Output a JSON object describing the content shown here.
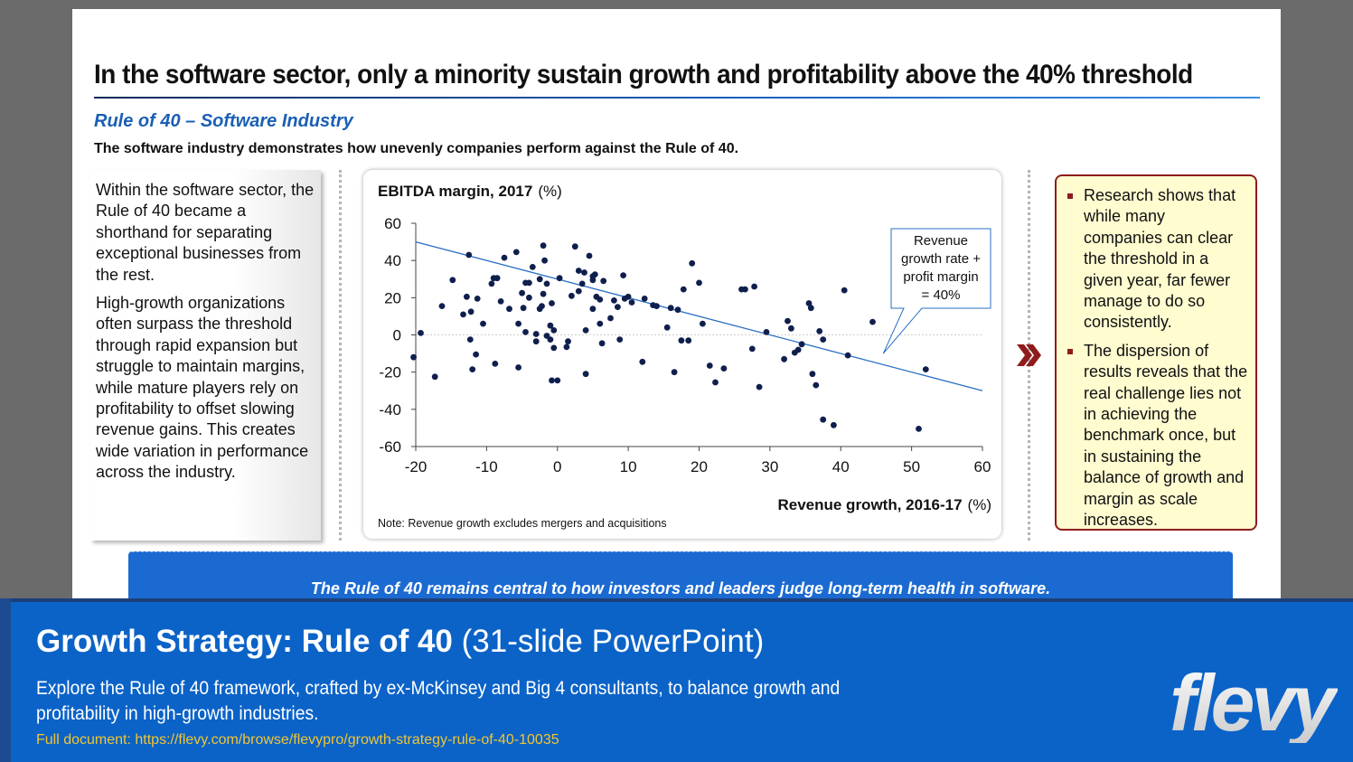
{
  "slide": {
    "title": "In the software sector, only a minority sustain growth and profitability above the 40% threshold",
    "subtitle": "Rule of 40 – Software Industry",
    "lead": "The software industry demonstrates how unevenly companies perform against the Rule of 40.",
    "left_paragraphs": [
      "Within the software sector, the Rule of 40 became a shorthand for separating exceptional businesses from the rest.",
      "High-growth organizations often surpass the threshold through rapid expansion but struggle to maintain margins, while mature players rely on profitability to offset slowing revenue gains. This creates wide variation in performance across the industry."
    ],
    "right_bullets": [
      "Research shows that while many companies can clear the threshold in a given year, far fewer manage to do so consistently.",
      "The dispersion of results reveals that the real challenge lies not in achieving the benchmark once, but in sustaining the balance of growth and margin as scale increases."
    ],
    "banner": "The Rule of 40 remains central to how investors and leaders judge long-term health in software."
  },
  "chart_data": {
    "type": "scatter",
    "title": "EBITDA margin, 2017",
    "title_unit": "(%)",
    "xlabel": "Revenue growth, 2016-17",
    "xlabel_unit": "(%)",
    "note": "Note: Revenue growth excludes mergers and acquisitions",
    "xlim": [
      -20,
      60
    ],
    "ylim": [
      -60,
      60
    ],
    "x_ticks": [
      -20,
      -10,
      0,
      10,
      20,
      30,
      40,
      50,
      60
    ],
    "y_ticks": [
      60,
      40,
      20,
      0,
      -20,
      -40,
      -60
    ],
    "reference_line": {
      "label_lines": [
        "Revenue",
        "growth rate +",
        "profit margin",
        "= 40%"
      ],
      "from": [
        -20,
        50
      ],
      "to": [
        60,
        -30
      ]
    },
    "points": [
      [
        -20.3,
        -12
      ],
      [
        -19.3,
        1
      ],
      [
        -17.3,
        -22.5
      ],
      [
        -16.3,
        15.5
      ],
      [
        -14.8,
        29.5
      ],
      [
        -13.3,
        11
      ],
      [
        -12.8,
        20.5
      ],
      [
        -12.5,
        43
      ],
      [
        -12.3,
        -2.5
      ],
      [
        -12.2,
        12.5
      ],
      [
        -12.0,
        -18.5
      ],
      [
        -11.5,
        -10.5
      ],
      [
        -11.3,
        19.5
      ],
      [
        -10.5,
        6
      ],
      [
        -9.3,
        27.5
      ],
      [
        -9,
        30.5
      ],
      [
        -8.8,
        -15.5
      ],
      [
        -8.5,
        30.5
      ],
      [
        -8,
        18
      ],
      [
        -7.5,
        41.5
      ],
      [
        -6.8,
        14
      ],
      [
        -5.8,
        44.5
      ],
      [
        -5.5,
        -17.5
      ],
      [
        -5.5,
        6
      ],
      [
        -5,
        22.5
      ],
      [
        -4.8,
        14.5
      ],
      [
        -4.5,
        28
      ],
      [
        -4.5,
        1.5
      ],
      [
        -4,
        20
      ],
      [
        -4,
        28
      ],
      [
        -3.5,
        36.5
      ],
      [
        -3,
        -3.5
      ],
      [
        -3,
        0.5
      ],
      [
        -2.5,
        30
      ],
      [
        -2.5,
        14
      ],
      [
        -2.2,
        15.5
      ],
      [
        -2,
        48
      ],
      [
        -2,
        22
      ],
      [
        -1.8,
        40
      ],
      [
        -1.5,
        27.5
      ],
      [
        -1.5,
        -0.5
      ],
      [
        -1,
        5
      ],
      [
        -1,
        -2.5
      ],
      [
        -0.8,
        17
      ],
      [
        -0.5,
        2.5
      ],
      [
        -0.5,
        -7
      ],
      [
        -0.8,
        -24.5
      ],
      [
        0,
        -24.5
      ],
      [
        0.3,
        30.5
      ],
      [
        1.3,
        -6.5
      ],
      [
        1.5,
        -3.5
      ],
      [
        2,
        21
      ],
      [
        2.5,
        47.5
      ],
      [
        3,
        34.5
      ],
      [
        3,
        23.5
      ],
      [
        3.5,
        27.5
      ],
      [
        3.8,
        33.5
      ],
      [
        4,
        2.5
      ],
      [
        4,
        -21
      ],
      [
        4.5,
        42.5
      ],
      [
        5,
        14
      ],
      [
        5,
        31.5
      ],
      [
        5,
        29.5
      ],
      [
        5.3,
        32.5
      ],
      [
        5.5,
        20.5
      ],
      [
        6,
        19
      ],
      [
        6,
        6
      ],
      [
        6.3,
        -4.5
      ],
      [
        6.5,
        29
      ],
      [
        7.5,
        9
      ],
      [
        8,
        18.5
      ],
      [
        8.5,
        15
      ],
      [
        8.8,
        -2.5
      ],
      [
        9.3,
        32
      ],
      [
        9.5,
        19.5
      ],
      [
        10,
        20.5
      ],
      [
        10.5,
        17.5
      ],
      [
        12,
        -14.5
      ],
      [
        12.3,
        19.5
      ],
      [
        13.5,
        16
      ],
      [
        14,
        15.5
      ],
      [
        15.5,
        4
      ],
      [
        16,
        14.5
      ],
      [
        16.5,
        -20
      ],
      [
        17,
        13.5
      ],
      [
        17.5,
        -3
      ],
      [
        17.8,
        24.5
      ],
      [
        18.5,
        -3
      ],
      [
        19,
        38.5
      ],
      [
        20,
        28
      ],
      [
        20.5,
        6
      ],
      [
        21.5,
        -16.5
      ],
      [
        22.3,
        -25.5
      ],
      [
        23.5,
        -18
      ],
      [
        26,
        24.5
      ],
      [
        26.5,
        24.5
      ],
      [
        27.5,
        -7.5
      ],
      [
        27.8,
        26
      ],
      [
        28.5,
        -28
      ],
      [
        29.5,
        1.5
      ],
      [
        32,
        -13
      ],
      [
        32.5,
        7.5
      ],
      [
        33,
        3.5
      ],
      [
        33.5,
        -9.5
      ],
      [
        34,
        -8
      ],
      [
        34.5,
        -5
      ],
      [
        35.5,
        17
      ],
      [
        35.8,
        14.5
      ],
      [
        36,
        -21
      ],
      [
        36.5,
        -27
      ],
      [
        37,
        2
      ],
      [
        37.5,
        -45.5
      ],
      [
        37.5,
        -2.5
      ],
      [
        39,
        -48.5
      ],
      [
        40.5,
        24
      ],
      [
        41,
        -11
      ],
      [
        44.5,
        7
      ],
      [
        51,
        -50.5
      ],
      [
        52,
        -18.5
      ]
    ]
  },
  "footer": {
    "title_bold": "Growth Strategy: Rule of 40",
    "title_light": "(31-slide PowerPoint)",
    "description": "Explore the Rule of 40 framework, crafted by ex-McKinsey and Big 4 consultants, to balance growth and profitability in high-growth industries.",
    "link": "Full document: https://flevy.com/browse/flevypro/growth-strategy-rule-of-40-10035",
    "logo_text": "flevy"
  },
  "colors": {
    "accent": "#1b6ad2",
    "footer": "#0b63c8",
    "maroon": "#8e1c1c",
    "point": "#0f1f4d",
    "line": "#2a6fc6",
    "link": "#f2c530"
  }
}
